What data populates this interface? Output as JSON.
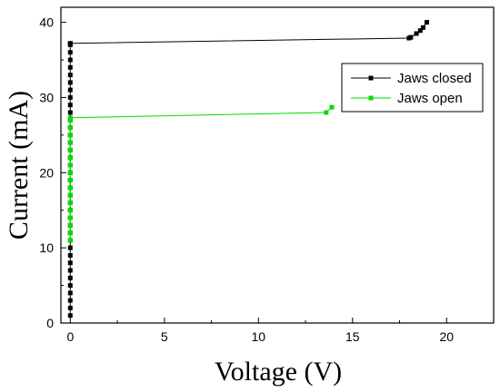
{
  "chart_data": {
    "type": "scatter",
    "title": "",
    "xlabel": "Voltage (V)",
    "ylabel": "Current (mA)",
    "xlim": [
      -0.5,
      22.5
    ],
    "ylim": [
      0,
      42
    ],
    "xticks": [
      0,
      5,
      10,
      15,
      20
    ],
    "yticks": [
      0,
      10,
      20,
      30,
      40
    ],
    "grid": false,
    "legend_position": "top-right",
    "series": [
      {
        "name": "Jaws closed",
        "color": "#000000",
        "x": [
          0,
          0,
          0,
          0,
          0,
          0,
          0,
          0,
          0,
          0,
          0,
          0,
          0,
          0,
          0,
          0,
          0,
          0,
          0,
          0,
          0,
          0,
          0,
          0,
          0,
          0,
          0,
          0,
          0,
          0,
          0,
          0,
          0,
          0,
          0,
          0,
          0,
          0,
          0,
          18.0,
          18.1,
          18.4,
          18.6,
          18.75,
          18.95
        ],
        "y": [
          1,
          2,
          3,
          4,
          5,
          6,
          7,
          8,
          9,
          10,
          11,
          12,
          13,
          14,
          15,
          16,
          17,
          18,
          19,
          20,
          21,
          22,
          23,
          24,
          25,
          26,
          27,
          28,
          29,
          30,
          31,
          32,
          33,
          34,
          35,
          36,
          37,
          37.2,
          37.2,
          37.9,
          38.0,
          38.5,
          38.9,
          39.3,
          40.0
        ]
      },
      {
        "name": "Jaws open",
        "color": "#00dd00",
        "x": [
          0,
          0,
          0,
          0,
          0,
          0,
          0,
          0,
          0,
          0,
          0,
          0,
          0,
          0,
          0,
          0,
          0,
          0,
          13.6,
          13.9
        ],
        "y": [
          11,
          12,
          13,
          14,
          15,
          16,
          17,
          18,
          19,
          20,
          21,
          22,
          23,
          24,
          25,
          26,
          27,
          27.3,
          28.0,
          28.7
        ]
      }
    ]
  }
}
